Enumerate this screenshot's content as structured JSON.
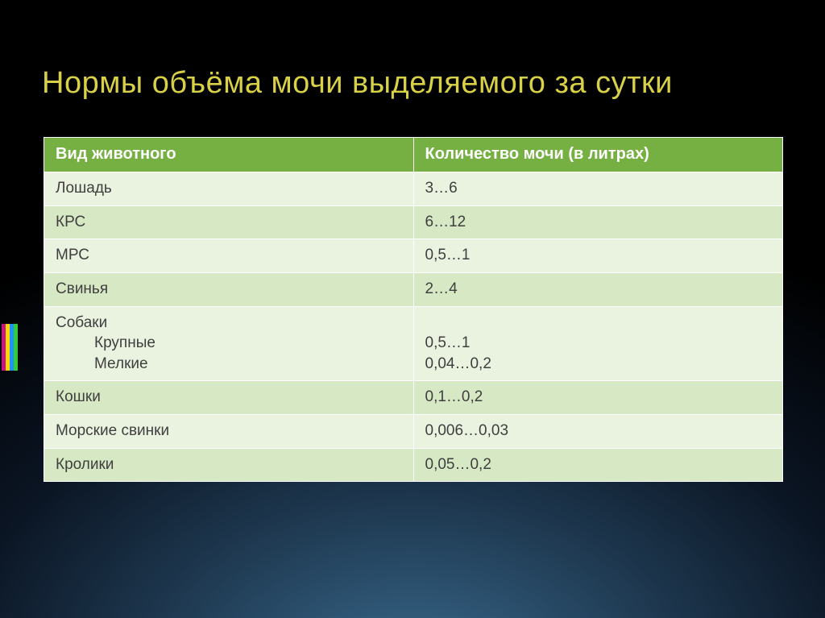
{
  "title": "Нормы объёма мочи выделяемого за сутки",
  "title_color": "#d8d148",
  "accent_bars": [
    "#c71585",
    "#ffd700",
    "#1e90ff",
    "#32cd32"
  ],
  "table": {
    "header_bg": "#76b043",
    "row_colors_alt": [
      "#eaf3df",
      "#d6e8c4"
    ],
    "text_color": "#3f3f3f",
    "columns": [
      "Вид животного",
      "Количество мочи (в литрах)"
    ],
    "rows": [
      {
        "animal": "Лошадь",
        "amount": "3…6"
      },
      {
        "animal": "КРС",
        "amount": "6…12"
      },
      {
        "animal": "МРС",
        "amount": "0,5…1"
      },
      {
        "animal": "Свинья",
        "amount": "2…4"
      },
      {
        "animal": "Собаки",
        "sub": [
          "Крупные",
          "Мелкие"
        ],
        "amount_lines": [
          "",
          "0,5…1",
          "0,04…0,2"
        ]
      },
      {
        "animal": "Кошки",
        "amount": "0,1…0,2"
      },
      {
        "animal": "Морские свинки",
        "amount": "0,006…0,03"
      },
      {
        "animal": "Кролики",
        "amount": "0,05…0,2"
      }
    ]
  }
}
